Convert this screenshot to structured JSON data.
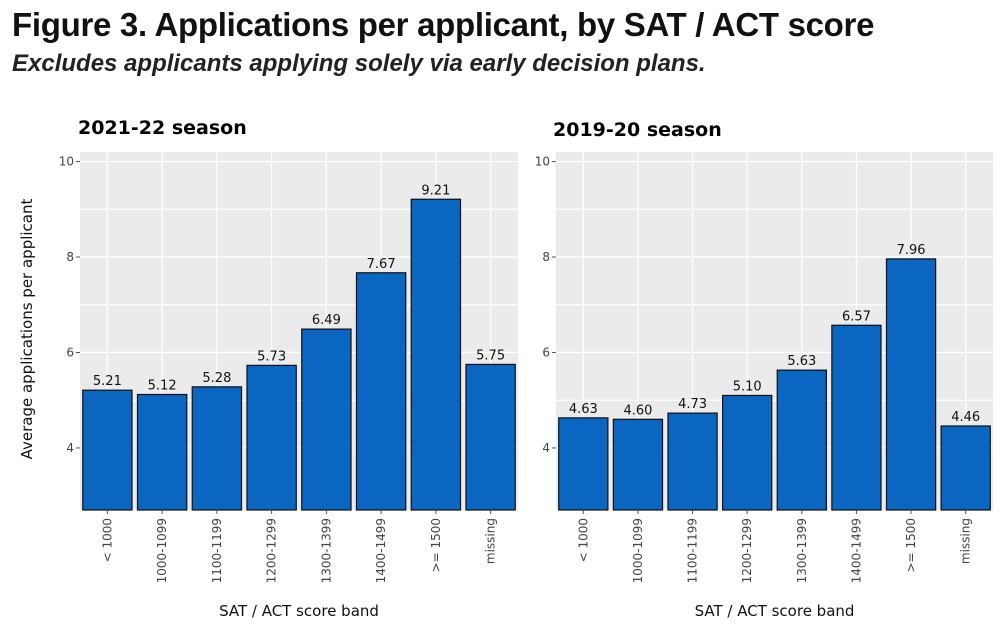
{
  "figure": {
    "title": "Figure 3. Applications per applicant, by SAT / ACT score",
    "subtitle": "Excludes applicants applying solely via early decision plans."
  },
  "colors": {
    "bar": "#0a66c0",
    "panel_bg": "#ebebeb",
    "grid": "#ffffff"
  },
  "chart_data": [
    {
      "type": "bar",
      "title": "2021-22 season",
      "categories": [
        "< 1000",
        "1000-1099",
        "1100-1199",
        "1200-1299",
        "1300-1399",
        "1400-1499",
        ">= 1500",
        "missing"
      ],
      "values": [
        5.21,
        5.12,
        5.28,
        5.73,
        6.49,
        7.67,
        9.21,
        5.75
      ],
      "value_labels": [
        "5.21",
        "5.12",
        "5.28",
        "5.73",
        "6.49",
        "7.67",
        "9.21",
        "5.75"
      ],
      "xlabel": "SAT / ACT score band",
      "ylabel": "Average applications per applicant",
      "ylim": [
        2.7,
        10.2
      ],
      "yticks": [
        4,
        6,
        8,
        10
      ],
      "ytick_labels": [
        "4",
        "6",
        "8",
        "10"
      ],
      "grid": true
    },
    {
      "type": "bar",
      "title": "2019-20 season",
      "categories": [
        "< 1000",
        "1000-1099",
        "1100-1199",
        "1200-1299",
        "1300-1399",
        "1400-1499",
        ">= 1500",
        "missing"
      ],
      "values": [
        4.63,
        4.6,
        4.73,
        5.1,
        5.63,
        6.57,
        7.96,
        4.46
      ],
      "value_labels": [
        "4.63",
        "4.60",
        "4.73",
        "5.10",
        "5.63",
        "6.57",
        "7.96",
        "4.46"
      ],
      "xlabel": "SAT / ACT score band",
      "ylabel": "",
      "ylim": [
        2.7,
        10.2
      ],
      "yticks": [
        4,
        6,
        8,
        10
      ],
      "ytick_labels": [
        "4",
        "6",
        "8",
        "10"
      ],
      "grid": true
    }
  ]
}
